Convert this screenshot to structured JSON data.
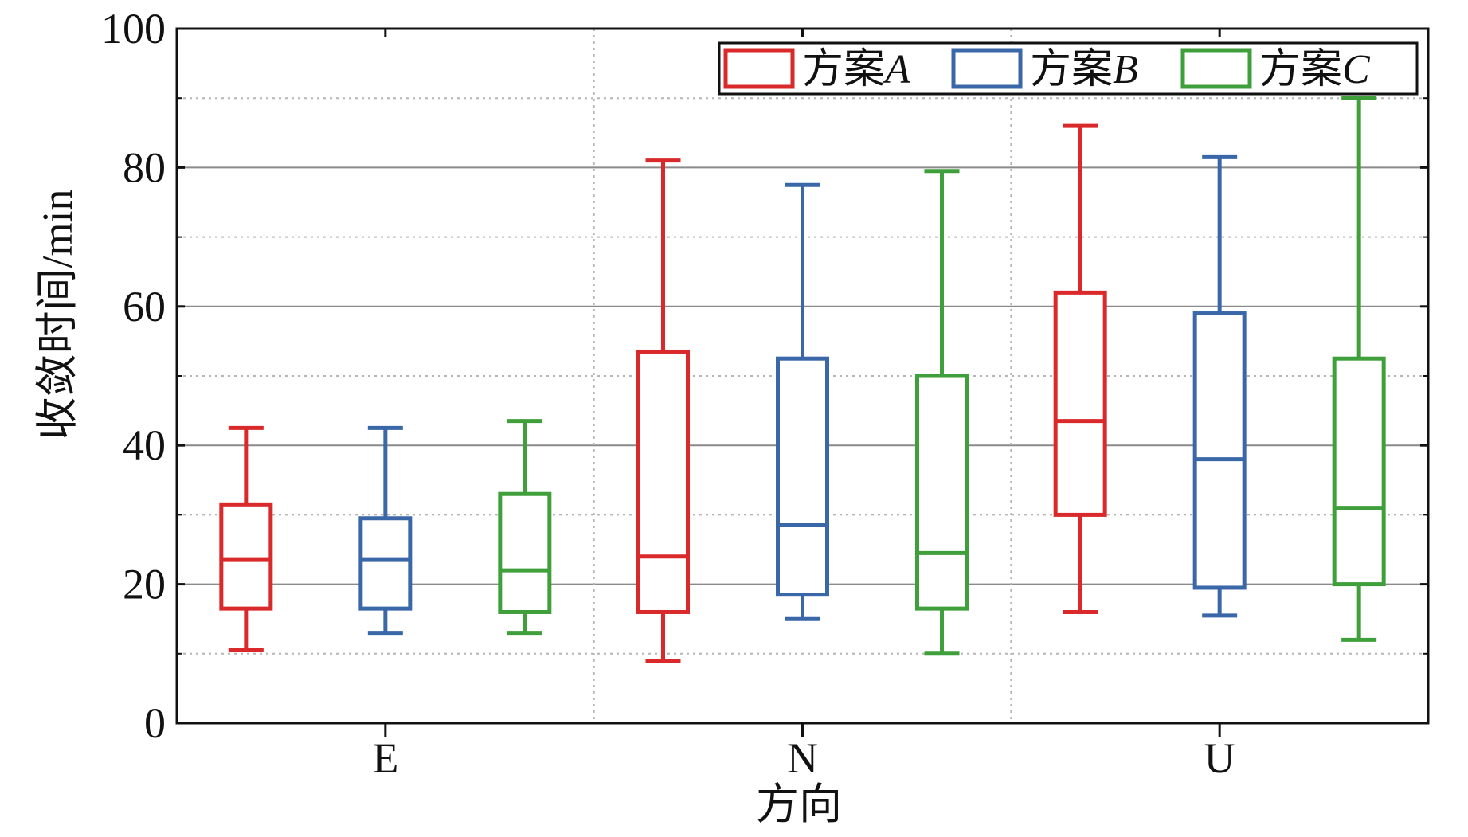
{
  "chart_data": {
    "type": "box",
    "xlabel": "方向",
    "ylabel": "收敛时间/min",
    "ylim": [
      0,
      100
    ],
    "yticks": [
      0,
      20,
      40,
      60,
      80,
      100
    ],
    "grid": {
      "major_y": true,
      "minor_y": true,
      "x_group_dividers": true
    },
    "legend_position": "top-right",
    "categories": [
      "E",
      "N",
      "U"
    ],
    "series": [
      {
        "name": "方案A",
        "name_prefix": "方案",
        "name_suffix": "A",
        "color": "#d9292a",
        "boxes": [
          {
            "category": "E",
            "whisker_low": 10.5,
            "q1": 16.5,
            "median": 23.5,
            "q3": 31.5,
            "whisker_high": 42.5
          },
          {
            "category": "N",
            "whisker_low": 9,
            "q1": 16,
            "median": 24,
            "q3": 53.5,
            "whisker_high": 81
          },
          {
            "category": "U",
            "whisker_low": 16,
            "q1": 30,
            "median": 43.5,
            "q3": 62,
            "whisker_high": 86
          }
        ]
      },
      {
        "name": "方案B",
        "name_prefix": "方案",
        "name_suffix": "B",
        "color": "#3a67a8",
        "boxes": [
          {
            "category": "E",
            "whisker_low": 13,
            "q1": 16.5,
            "median": 23.5,
            "q3": 29.5,
            "whisker_high": 42.5
          },
          {
            "category": "N",
            "whisker_low": 15,
            "q1": 18.5,
            "median": 28.5,
            "q3": 52.5,
            "whisker_high": 77.5
          },
          {
            "category": "U",
            "whisker_low": 15.5,
            "q1": 19.5,
            "median": 38,
            "q3": 59,
            "whisker_high": 81.5
          }
        ]
      },
      {
        "name": "方案C",
        "name_prefix": "方案",
        "name_suffix": "C",
        "color": "#3f9f3a",
        "boxes": [
          {
            "category": "E",
            "whisker_low": 13,
            "q1": 16,
            "median": 22,
            "q3": 33,
            "whisker_high": 43.5
          },
          {
            "category": "N",
            "whisker_low": 10,
            "q1": 16.5,
            "median": 24.5,
            "q3": 50,
            "whisker_high": 79.5
          },
          {
            "category": "U",
            "whisker_low": 12,
            "q1": 20,
            "median": 31,
            "q3": 52.5,
            "whisker_high": 90
          }
        ]
      }
    ]
  }
}
